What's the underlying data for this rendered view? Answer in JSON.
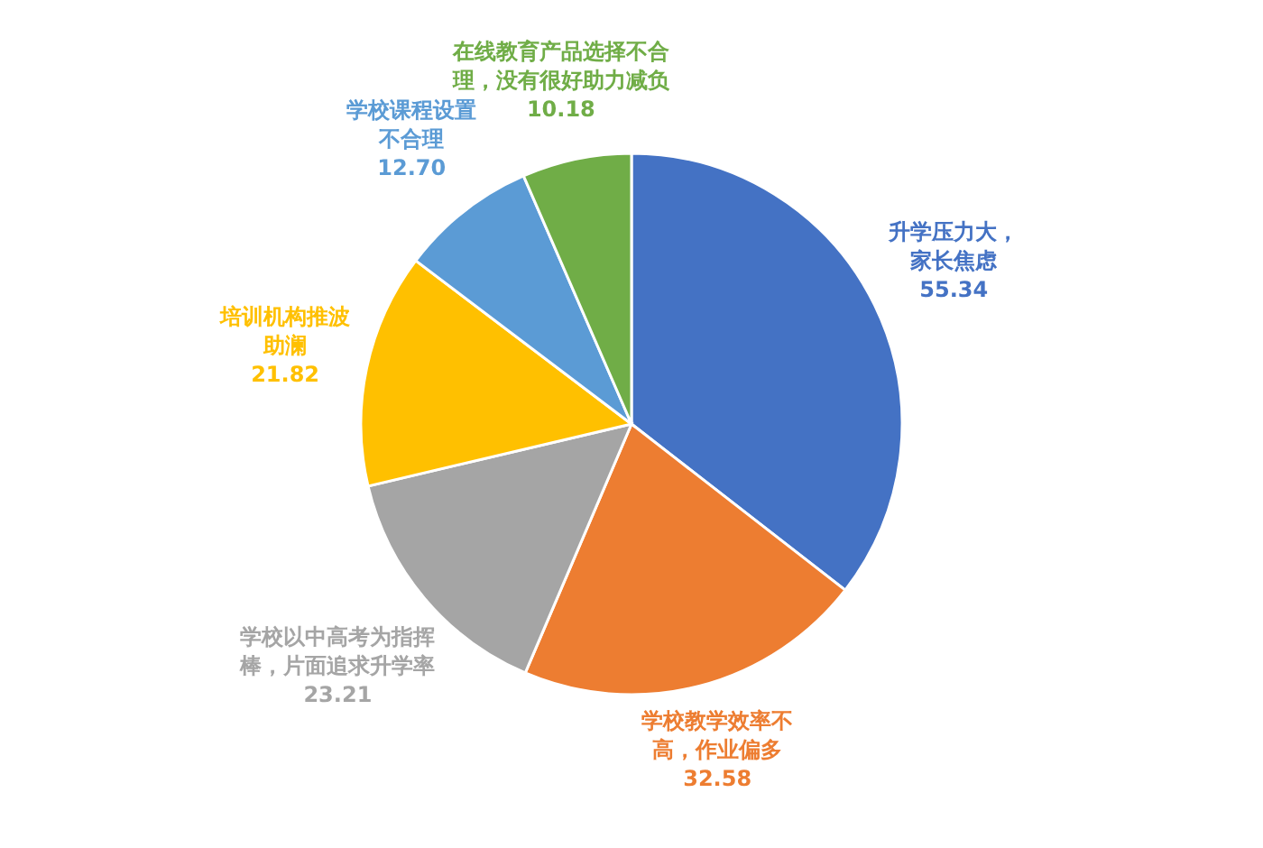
{
  "chart_data": {
    "type": "pie",
    "categories": [
      "升学压力大，家长焦虑",
      "学校教学效率不高，作业偏多",
      "学校以中高考为指挥棒，片面追求升学率",
      "培训机构推波助澜",
      "学校课程设置不合理",
      "在线教育产品选择不合理，没有很好助力减负"
    ],
    "values": [
      55.34,
      32.58,
      23.21,
      21.82,
      12.7,
      10.18
    ],
    "value_labels": [
      "55.34",
      "32.58",
      "23.21",
      "21.82",
      "12.70",
      "10.18"
    ],
    "colors": [
      "#4472c4",
      "#ed7d31",
      "#a5a5a5",
      "#ffc000",
      "#5b9bd5",
      "#70ad47"
    ]
  }
}
